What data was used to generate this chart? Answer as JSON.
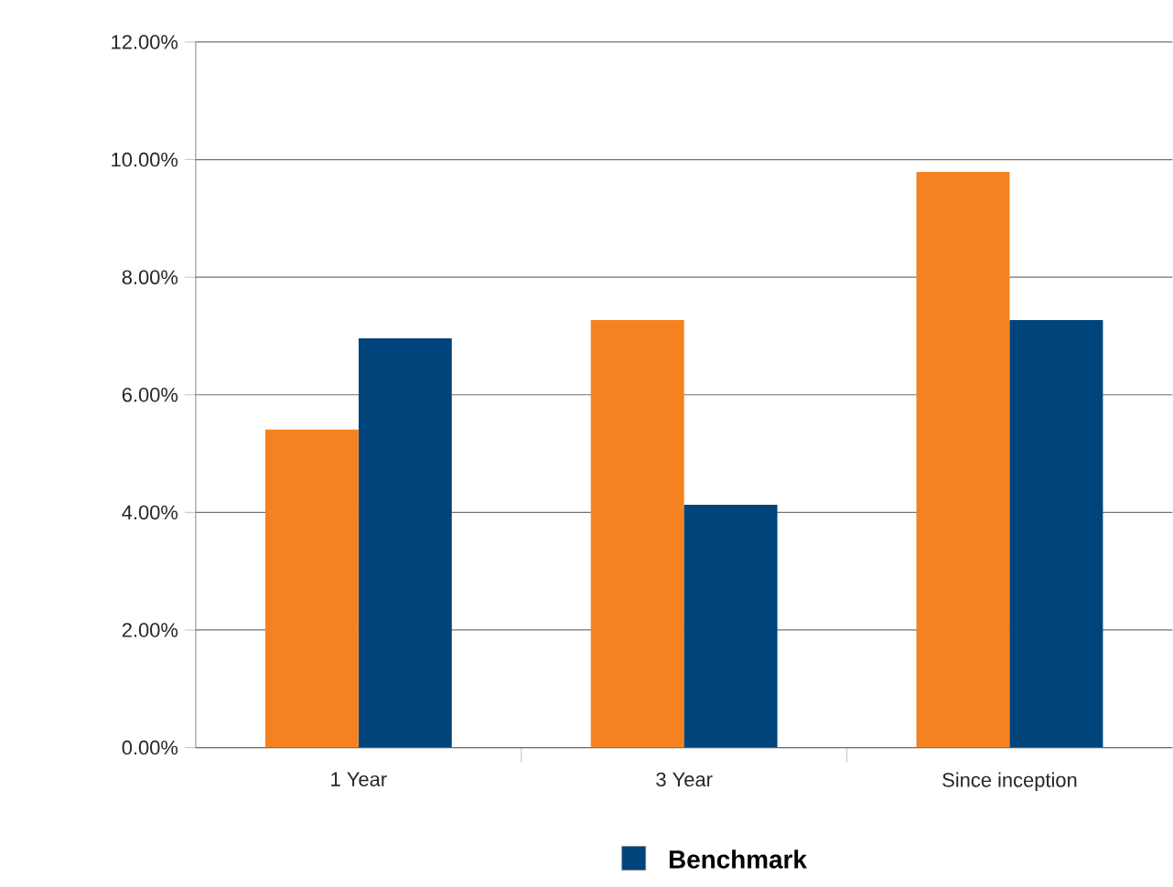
{
  "chart_data": {
    "type": "bar",
    "categories": [
      "1 Year",
      "3 Year",
      "Since inception"
    ],
    "series": [
      {
        "color": "#f58220",
        "values": [
          5.41,
          7.27,
          9.79
        ]
      },
      {
        "name": "Benchmark",
        "color": "#00447c",
        "values": [
          6.96,
          4.13,
          7.27
        ]
      }
    ],
    "ylim": [
      0,
      12
    ],
    "yticks": [
      {
        "value": 0,
        "label": "0.00%"
      },
      {
        "value": 2,
        "label": "2.00%"
      },
      {
        "value": 4,
        "label": "4.00%"
      },
      {
        "value": 6,
        "label": "6.00%"
      },
      {
        "value": 8,
        "label": "8.00%"
      },
      {
        "value": 10,
        "label": "10.00%"
      },
      {
        "value": 12,
        "label": "12.00%"
      }
    ],
    "grid": "y",
    "legend": "bottom"
  }
}
